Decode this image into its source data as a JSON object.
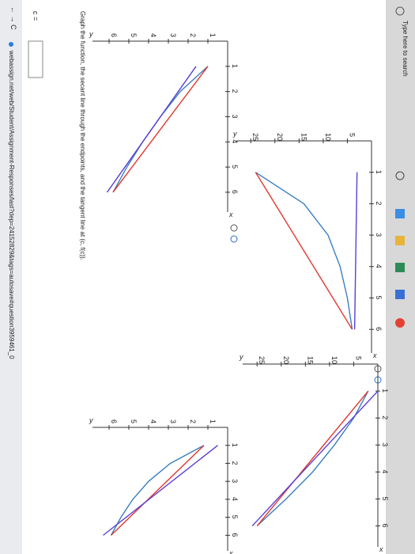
{
  "browser": {
    "nav": "← → C",
    "url": "webassign.net/web/Student/Assignment-Responses/last?dep=24152829&tags=autosave#question3959461_0"
  },
  "question": {
    "c_label": "c =",
    "prompt": "Graph the function, the secant line through the endpoints, and the tangent line at (c, f(c))."
  },
  "chart_data": [
    {
      "type": "line",
      "x_label": "x",
      "y_label": "y",
      "xlim": [
        0,
        6.6
      ],
      "ylim": [
        0,
        6.6
      ],
      "xticks": [
        1,
        2,
        3,
        4,
        5,
        6
      ],
      "yticks": [
        1,
        2,
        3,
        4,
        5,
        6
      ],
      "series": [
        {
          "color": "#3a7fc1",
          "x": [
            1,
            2,
            3,
            4,
            5,
            6
          ],
          "values": [
            1,
            2.4,
            3.4,
            4.3,
            5.1,
            5.8
          ]
        },
        {
          "color": "#e0382f",
          "x": [
            1,
            6
          ],
          "values": [
            1,
            5.8
          ]
        },
        {
          "color": "#5b3fd6",
          "x": [
            1,
            6
          ],
          "values": [
            1.6,
            6.1
          ]
        }
      ]
    },
    {
      "type": "line",
      "x_label": "x",
      "y_label": "y",
      "xlim": [
        0,
        6.6
      ],
      "ylim": [
        0,
        27
      ],
      "xticks": [
        1,
        2,
        3,
        4,
        5,
        6
      ],
      "yticks": [
        5,
        10,
        15,
        20,
        25
      ],
      "series": [
        {
          "color": "#3a7fc1",
          "x": [
            1,
            2,
            3,
            4,
            5,
            6
          ],
          "values": [
            24,
            14,
            9,
            6.5,
            5,
            4
          ]
        },
        {
          "color": "#e0382f",
          "x": [
            1,
            6
          ],
          "values": [
            24,
            4
          ]
        },
        {
          "color": "#5b3fd6",
          "x": [
            1,
            6
          ],
          "values": [
            3,
            3.5
          ]
        }
      ]
    },
    {
      "type": "line",
      "x_label": "x",
      "y_label": "y",
      "xlim": [
        0,
        6.6
      ],
      "ylim": [
        0,
        6.6
      ],
      "xticks": [
        1,
        2,
        3,
        4,
        5,
        6
      ],
      "yticks": [
        1,
        2,
        3,
        4,
        5,
        6
      ],
      "series": [
        {
          "color": "#3a7fc1",
          "x": [
            1,
            2,
            3,
            4,
            5,
            6
          ],
          "values": [
            1.2,
            2.9,
            4,
            4.8,
            5.4,
            5.9
          ]
        },
        {
          "color": "#e0382f",
          "x": [
            1,
            6
          ],
          "values": [
            1.2,
            5.9
          ]
        },
        {
          "color": "#5b3fd6",
          "x": [
            1,
            6
          ],
          "values": [
            0.5,
            6.3
          ]
        }
      ]
    },
    {
      "type": "line",
      "x_label": "x",
      "y_label": "y",
      "xlim": [
        0,
        6.6
      ],
      "ylim": [
        0,
        27
      ],
      "xticks": [
        1,
        2,
        3,
        4,
        5,
        6
      ],
      "yticks": [
        5,
        10,
        15,
        20,
        25
      ],
      "series": [
        {
          "color": "#3a7fc1",
          "x": [
            1,
            2,
            3,
            4,
            5,
            6
          ],
          "values": [
            2,
            5,
            9,
            13.5,
            19,
            25
          ]
        },
        {
          "color": "#e0382f",
          "x": [
            1,
            6
          ],
          "values": [
            2,
            25
          ]
        },
        {
          "color": "#5b3fd6",
          "x": [
            1,
            6
          ],
          "values": [
            0,
            26
          ]
        }
      ]
    }
  ],
  "taskbar": {
    "search": "Type here to search"
  }
}
